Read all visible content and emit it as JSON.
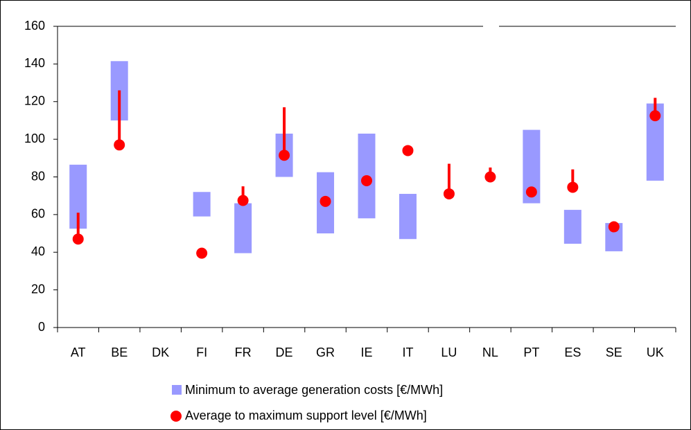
{
  "chart_data": {
    "type": "range",
    "categories": [
      "AT",
      "BE",
      "DK",
      "FI",
      "FR",
      "DE",
      "GR",
      "IE",
      "IT",
      "LU",
      "NL",
      "PT",
      "ES",
      "SE",
      "UK"
    ],
    "ylim": [
      0,
      160
    ],
    "yticks": [
      0,
      20,
      40,
      60,
      80,
      100,
      120,
      140,
      160
    ],
    "series": [
      {
        "name": "Minimum to average generation costs [€/MWh]",
        "color": "#9999ff",
        "low": [
          52.5,
          110,
          null,
          59,
          39.5,
          80,
          50,
          58,
          47,
          null,
          null,
          66,
          44.5,
          40.5,
          78
        ],
        "high": [
          86.5,
          141.5,
          null,
          72,
          66,
          103,
          82.5,
          103,
          71,
          null,
          null,
          105,
          62.5,
          55.5,
          119
        ]
      },
      {
        "name": "Average to maximum support level [€/MWh]",
        "color": "#ff0000",
        "values": [
          47,
          97,
          null,
          39.5,
          67.5,
          91.5,
          67,
          78,
          94,
          71,
          80,
          72,
          74.5,
          53.5,
          112.5
        ],
        "high": [
          61,
          126,
          null,
          null,
          75,
          117,
          69,
          null,
          null,
          87,
          85,
          null,
          84,
          null,
          122
        ]
      }
    ]
  }
}
